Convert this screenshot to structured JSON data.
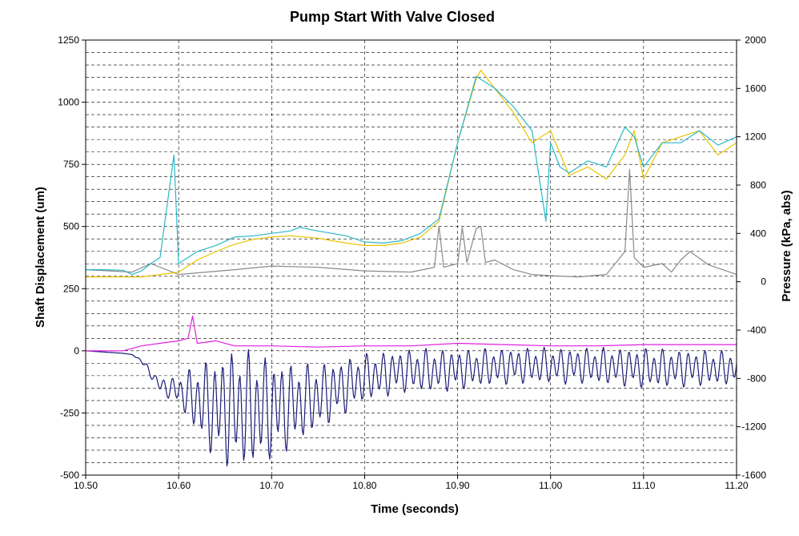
{
  "chart_data": {
    "type": "line",
    "title": "Pump Start With Valve Closed",
    "xlabel": "Time (seconds)",
    "ylabel_left": "Shaft Displacement (um)",
    "ylabel_right": "Pressure (kPa, abs)",
    "xlim": [
      10.5,
      11.2
    ],
    "ylim_left": [
      -500,
      1250
    ],
    "ylim_right": [
      -1600,
      2000
    ],
    "x_ticks": [
      "10.50",
      "10.60",
      "10.70",
      "10.80",
      "10.90",
      "11.00",
      "11.10",
      "11.20"
    ],
    "y_left_ticks": [
      "1250",
      "1000",
      "750",
      "500",
      "250",
      "0",
      "-250",
      "-500"
    ],
    "y_right_ticks": [
      "2000",
      "1600",
      "1200",
      "800",
      "400",
      "0",
      "-400",
      "-800",
      "-1200",
      "-1600"
    ],
    "grid": true,
    "legend": "none",
    "colors": {
      "cyan": "#2ab8c8",
      "yellow": "#e8c400",
      "gray": "#8a8a8a",
      "magenta": "#e020e0",
      "navy": "#1c1c78"
    },
    "series": [
      {
        "axis": "right",
        "color": "cyan",
        "x": [
          10.5,
          10.52,
          10.54,
          10.55,
          10.56,
          10.57,
          10.58,
          10.595,
          10.6,
          10.62,
          10.64,
          10.66,
          10.68,
          10.7,
          10.72,
          10.73,
          10.75,
          10.78,
          10.8,
          10.82,
          10.84,
          10.86,
          10.88,
          10.9,
          10.92,
          10.94,
          10.96,
          10.98,
          10.995,
          11.0,
          11.01,
          11.02,
          11.04,
          11.06,
          11.08,
          11.09,
          11.1,
          11.12,
          11.14,
          11.16,
          11.18,
          11.2
        ],
        "y": [
          100,
          100,
          95,
          60,
          90,
          150,
          200,
          1050,
          150,
          250,
          300,
          370,
          380,
          400,
          420,
          450,
          420,
          380,
          330,
          320,
          340,
          400,
          520,
          1150,
          1700,
          1600,
          1450,
          1250,
          500,
          1150,
          950,
          900,
          1000,
          950,
          1280,
          1200,
          950,
          1150,
          1150,
          1250,
          1130,
          1200
        ]
      },
      {
        "axis": "right",
        "color": "yellow",
        "x": [
          10.5,
          10.54,
          10.56,
          10.58,
          10.6,
          10.62,
          10.64,
          10.66,
          10.68,
          10.7,
          10.72,
          10.75,
          10.78,
          10.8,
          10.82,
          10.84,
          10.86,
          10.88,
          10.9,
          10.92,
          10.925,
          10.94,
          10.96,
          10.98,
          11.0,
          11.02,
          11.04,
          11.06,
          11.08,
          11.09,
          11.1,
          11.12,
          11.14,
          11.16,
          11.18,
          11.2
        ],
        "y": [
          40,
          40,
          40,
          60,
          80,
          180,
          250,
          310,
          350,
          370,
          380,
          360,
          320,
          300,
          300,
          320,
          370,
          500,
          1150,
          1680,
          1750,
          1600,
          1400,
          1150,
          1250,
          880,
          950,
          850,
          1050,
          1250,
          850,
          1150,
          1200,
          1250,
          1050,
          1150
        ]
      },
      {
        "axis": "right",
        "color": "gray",
        "x": [
          10.5,
          10.55,
          10.57,
          10.6,
          10.63,
          10.66,
          10.7,
          10.75,
          10.8,
          10.85,
          10.875,
          10.88,
          10.885,
          10.9,
          10.905,
          10.91,
          10.92,
          10.925,
          10.93,
          10.94,
          10.96,
          10.98,
          11.0,
          11.03,
          11.06,
          11.08,
          11.085,
          11.09,
          11.1,
          11.12,
          11.13,
          11.14,
          11.15,
          11.17,
          11.2
        ],
        "y": [
          100,
          80,
          150,
          60,
          80,
          100,
          130,
          120,
          90,
          80,
          120,
          460,
          120,
          150,
          450,
          160,
          440,
          460,
          160,
          180,
          100,
          60,
          50,
          40,
          60,
          250,
          930,
          200,
          120,
          150,
          80,
          180,
          250,
          140,
          60
        ]
      },
      {
        "axis": "left",
        "color": "magenta",
        "x": [
          10.5,
          10.54,
          10.56,
          10.58,
          10.6,
          10.61,
          10.615,
          10.62,
          10.64,
          10.66,
          10.7,
          10.75,
          10.8,
          10.85,
          10.9,
          10.95,
          11.0,
          11.05,
          11.1,
          11.15,
          11.2
        ],
        "y": [
          0,
          0,
          20,
          30,
          40,
          50,
          140,
          30,
          40,
          20,
          20,
          15,
          20,
          20,
          30,
          25,
          20,
          20,
          25,
          25,
          25
        ]
      },
      {
        "axis": "left",
        "color": "navy",
        "x": [
          10.5,
          10.54,
          10.55,
          10.56,
          10.57,
          10.58,
          10.6,
          10.62,
          10.64,
          10.66,
          10.68,
          10.7,
          10.72,
          10.74,
          10.76,
          10.8,
          10.84,
          10.88,
          10.92,
          10.96,
          11.0,
          11.04,
          11.08,
          11.1,
          11.12,
          11.16,
          11.2
        ],
        "y": [
          0,
          -10,
          -15,
          -40,
          -90,
          -140,
          -160,
          -200,
          -230,
          -230,
          -240,
          -230,
          -220,
          -200,
          -170,
          -110,
          -80,
          -80,
          -70,
          -60,
          -60,
          -60,
          -65,
          -70,
          -70,
          -70,
          -70
        ],
        "amplitude": [
          0,
          0,
          0,
          10,
          20,
          30,
          60,
          150,
          220,
          250,
          240,
          210,
          180,
          150,
          130,
          100,
          90,
          90,
          80,
          75,
          75,
          75,
          80,
          85,
          80,
          75,
          70
        ]
      }
    ]
  }
}
